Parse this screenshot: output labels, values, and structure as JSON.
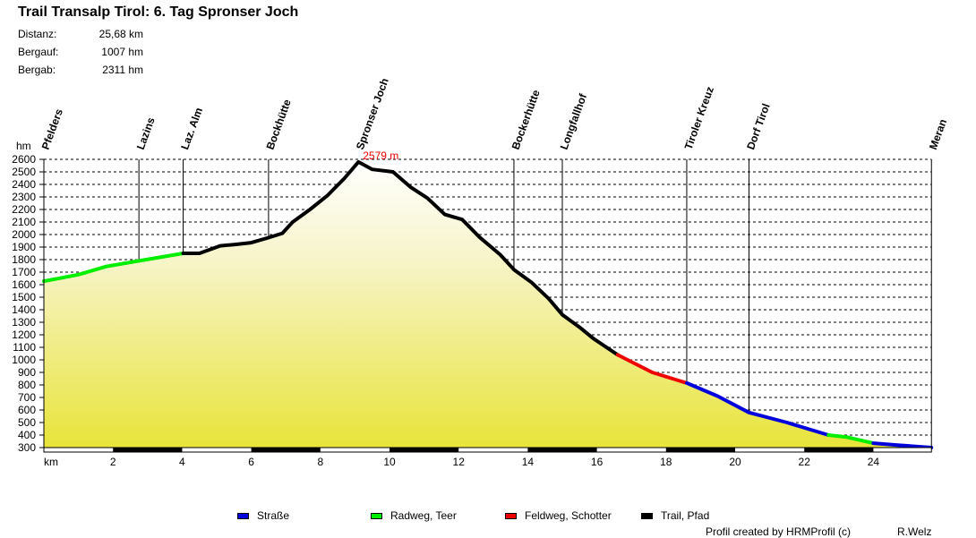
{
  "header": {
    "title": "Trail Transalp Tirol: 6. Tag Spronser Joch",
    "stats": [
      {
        "label": "Distanz:",
        "value": "25,68 km"
      },
      {
        "label": "Bergauf:",
        "value": "1007 hm"
      },
      {
        "label": "Bergab:",
        "value": "2311 hm"
      }
    ]
  },
  "chart_data": {
    "type": "line",
    "title": "Trail Transalp Tirol: 6. Tag Spronser Joch",
    "xlabel": "km",
    "ylabel": "hm",
    "xlim": [
      0,
      25.68
    ],
    "ylim": [
      300,
      2600
    ],
    "x_ticks": [
      2,
      4,
      6,
      8,
      10,
      12,
      14,
      16,
      18,
      20,
      22,
      24
    ],
    "y_ticks": [
      300,
      400,
      500,
      600,
      700,
      800,
      900,
      1000,
      1100,
      1200,
      1300,
      1400,
      1500,
      1600,
      1700,
      1800,
      1900,
      2000,
      2100,
      2200,
      2300,
      2400,
      2500,
      2600
    ],
    "grid": "horizontal dashed",
    "max_annotation": {
      "km": 9.1,
      "hm": 2579,
      "label": "2579 m"
    },
    "waypoints": [
      {
        "name": "Pfelders",
        "km": 0.0
      },
      {
        "name": "Lazins",
        "km": 2.75
      },
      {
        "name": "Laz.  Alm",
        "km": 4.03
      },
      {
        "name": "Bockhütte",
        "km": 6.5
      },
      {
        "name": "Spronser Joch",
        "km": 9.1
      },
      {
        "name": "Bockerhütte",
        "km": 13.6
      },
      {
        "name": "Longfallhof",
        "km": 15.0
      },
      {
        "name": "Tiroler Kreuz",
        "km": 18.6
      },
      {
        "name": "Dorf Tirol",
        "km": 20.4
      },
      {
        "name": "Meran",
        "km": 25.68
      }
    ],
    "series": [
      {
        "name": "Radweg, Teer",
        "color": "#00ee00",
        "points": [
          [
            0,
            1628
          ],
          [
            1,
            1680
          ],
          [
            1.8,
            1745
          ],
          [
            2.75,
            1790
          ],
          [
            3.5,
            1825
          ],
          [
            4.03,
            1850
          ]
        ]
      },
      {
        "name": "Trail, Pfad",
        "color": "#000000",
        "points": [
          [
            4.03,
            1850
          ],
          [
            4.5,
            1850
          ],
          [
            5.1,
            1910
          ],
          [
            5.5,
            1920
          ],
          [
            6.0,
            1935
          ],
          [
            6.5,
            1975
          ],
          [
            6.9,
            2010
          ],
          [
            7.2,
            2100
          ],
          [
            7.7,
            2200
          ],
          [
            8.2,
            2310
          ],
          [
            8.7,
            2450
          ],
          [
            9.1,
            2579
          ],
          [
            9.5,
            2520
          ],
          [
            10.1,
            2500
          ],
          [
            10.6,
            2380
          ],
          [
            11.1,
            2290
          ],
          [
            11.6,
            2160
          ],
          [
            12.1,
            2120
          ],
          [
            12.6,
            1980
          ],
          [
            13.2,
            1840
          ],
          [
            13.6,
            1720
          ],
          [
            14.1,
            1620
          ],
          [
            14.6,
            1490
          ],
          [
            15.0,
            1360
          ],
          [
            15.5,
            1260
          ],
          [
            15.9,
            1170
          ],
          [
            16.6,
            1040
          ]
        ]
      },
      {
        "name": "Feldweg, Schotter",
        "color": "#ee0000",
        "points": [
          [
            16.6,
            1040
          ],
          [
            17.6,
            900
          ],
          [
            18.6,
            815
          ]
        ]
      },
      {
        "name": "Straße",
        "color": "#0000dd",
        "points": [
          [
            18.6,
            815
          ],
          [
            19.5,
            710
          ],
          [
            20.4,
            580
          ],
          [
            21.5,
            500
          ],
          [
            22.7,
            400
          ]
        ]
      },
      {
        "name": "Radweg, Teer",
        "color": "#00ee00",
        "points": [
          [
            22.7,
            400
          ],
          [
            23.2,
            385
          ],
          [
            24.0,
            335
          ]
        ]
      },
      {
        "name": "Straße",
        "color": "#0000dd",
        "points": [
          [
            24.0,
            335
          ],
          [
            24.7,
            320
          ],
          [
            25.68,
            300
          ]
        ]
      }
    ],
    "legend": [
      "Straße",
      "Radweg, Teer",
      "Feldweg, Schotter",
      "Trail, Pfad"
    ]
  },
  "legend": [
    {
      "label": "Straße",
      "color": "#0000dd"
    },
    {
      "label": "Radweg, Teer",
      "color": "#00ee00"
    },
    {
      "label": "Feldweg, Schotter",
      "color": "#ee0000"
    },
    {
      "label": "Trail, Pfad",
      "color": "#000000"
    }
  ],
  "footer": {
    "credit": "Profil created by HRMProfil (c)",
    "author": "R.Welz"
  },
  "axis": {
    "y_unit": "hm",
    "x_unit": "km"
  }
}
